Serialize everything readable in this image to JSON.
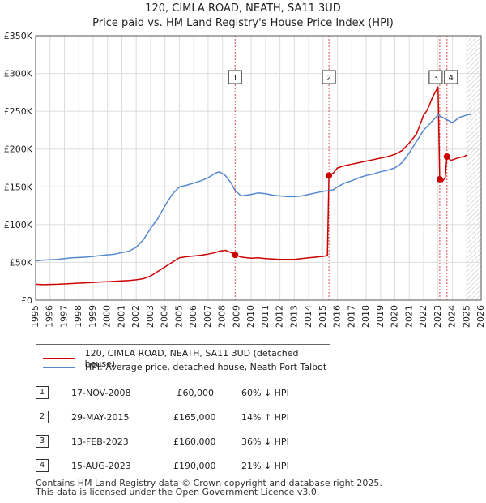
{
  "chart_data": {
    "type": "line",
    "title": "120, CIMLA ROAD, NEATH, SA11 3UD",
    "subtitle": "Price paid vs. HM Land Registry's House Price Index (HPI)",
    "xlabel": "",
    "ylabel": "",
    "xlim": [
      1995,
      2026
    ],
    "ylim": [
      0,
      350000
    ],
    "x_ticks": [
      "1995",
      "1996",
      "1997",
      "1998",
      "1999",
      "2000",
      "2001",
      "2002",
      "2003",
      "2004",
      "2005",
      "2006",
      "2007",
      "2008",
      "2009",
      "2010",
      "2011",
      "2012",
      "2013",
      "2014",
      "2015",
      "2016",
      "2017",
      "2018",
      "2019",
      "2020",
      "2021",
      "2022",
      "2023",
      "2024",
      "2025",
      "2026"
    ],
    "y_ticks": [
      {
        "value": 0,
        "label": "£0"
      },
      {
        "value": 50000,
        "label": "£50K"
      },
      {
        "value": 100000,
        "label": "£100K"
      },
      {
        "value": 150000,
        "label": "£150K"
      },
      {
        "value": 200000,
        "label": "£200K"
      },
      {
        "value": 250000,
        "label": "£250K"
      },
      {
        "value": 300000,
        "label": "£300K"
      },
      {
        "value": 350000,
        "label": "£350K"
      }
    ],
    "grid": true,
    "forecast_start": 2025.0,
    "series": [
      {
        "name": "120, CIMLA ROAD, NEATH, SA11 3UD (detached house)",
        "color": "#cc0000",
        "x": [
          1995.0,
          1995.5,
          1996.0,
          1996.5,
          1997.0,
          1997.5,
          1998.0,
          1998.5,
          1999.0,
          1999.5,
          2000.0,
          2000.5,
          2001.0,
          2001.5,
          2002.0,
          2002.5,
          2003.0,
          2003.5,
          2004.0,
          2004.5,
          2005.0,
          2005.5,
          2006.0,
          2006.5,
          2007.0,
          2007.5,
          2007.8,
          2008.2,
          2008.6,
          2008.88,
          2009.3,
          2010.0,
          2010.5,
          2011.0,
          2011.5,
          2012.0,
          2012.5,
          2013.0,
          2013.5,
          2014.0,
          2014.5,
          2015.0,
          2015.3,
          2015.41,
          2015.7,
          2016.0,
          2016.5,
          2017.0,
          2017.5,
          2018.0,
          2018.5,
          2019.0,
          2019.5,
          2020.0,
          2020.5,
          2021.0,
          2021.5,
          2021.8,
          2022.0,
          2022.2,
          2022.4,
          2022.6,
          2022.8,
          2023.0,
          2023.12,
          2023.3,
          2023.5,
          2023.62,
          2023.9,
          2024.2,
          2024.5,
          2024.8,
          2025.0
        ],
        "y": [
          21000,
          20500,
          20800,
          21000,
          21500,
          22000,
          22500,
          23000,
          23500,
          24000,
          24500,
          25000,
          25500,
          26000,
          27000,
          28500,
          32000,
          38000,
          44000,
          50000,
          56000,
          57500,
          58500,
          59500,
          61000,
          63000,
          65000,
          66000,
          63000,
          60000,
          57000,
          55500,
          56000,
          55000,
          54500,
          54000,
          54000,
          54000,
          55000,
          56000,
          57000,
          58000,
          59000,
          165000,
          168000,
          175000,
          178000,
          180000,
          182000,
          184000,
          186000,
          188000,
          190000,
          193000,
          198000,
          208000,
          220000,
          235000,
          245000,
          250000,
          258000,
          268000,
          275000,
          282000,
          160000,
          157000,
          162000,
          190000,
          185000,
          187000,
          189000,
          190000,
          192000
        ]
      },
      {
        "name": "HPI: Average price, detached house, Neath Port Talbot",
        "color": "#5588cc",
        "x": [
          1995.0,
          1995.5,
          1996.0,
          1996.5,
          1997.0,
          1997.5,
          1998.0,
          1998.5,
          1999.0,
          1999.5,
          2000.0,
          2000.5,
          2001.0,
          2001.5,
          2002.0,
          2002.5,
          2003.0,
          2003.5,
          2004.0,
          2004.5,
          2005.0,
          2005.5,
          2006.0,
          2006.5,
          2007.0,
          2007.5,
          2007.8,
          2008.2,
          2008.6,
          2008.88,
          2009.3,
          2010.0,
          2010.5,
          2011.0,
          2011.5,
          2012.0,
          2012.5,
          2013.0,
          2013.5,
          2014.0,
          2014.5,
          2015.0,
          2015.41,
          2015.7,
          2016.0,
          2016.5,
          2017.0,
          2017.5,
          2018.0,
          2018.5,
          2019.0,
          2019.5,
          2020.0,
          2020.5,
          2021.0,
          2021.5,
          2022.0,
          2022.5,
          2023.0,
          2023.5,
          2024.0,
          2024.5,
          2025.0,
          2025.3
        ],
        "y": [
          52000,
          53000,
          53500,
          54000,
          55000,
          56000,
          56500,
          57000,
          58000,
          59000,
          60000,
          61000,
          63000,
          65000,
          70000,
          80000,
          95000,
          108000,
          125000,
          140000,
          150000,
          152000,
          155000,
          158000,
          162000,
          168000,
          170000,
          165000,
          155000,
          145000,
          138000,
          140000,
          142000,
          141000,
          139000,
          138000,
          137000,
          137000,
          138000,
          140000,
          142000,
          144000,
          145000,
          146000,
          150000,
          155000,
          158000,
          162000,
          165000,
          167000,
          170000,
          172000,
          175000,
          182000,
          195000,
          210000,
          225000,
          235000,
          245000,
          240000,
          235000,
          242000,
          245000,
          246000
        ]
      }
    ],
    "transactions": [
      {
        "n": "1",
        "x": 2008.88,
        "y": 60000
      },
      {
        "n": "2",
        "x": 2015.41,
        "y": 165000
      },
      {
        "n": "3",
        "x": 2023.12,
        "y": 160000
      },
      {
        "n": "4",
        "x": 2023.62,
        "y": 190000
      }
    ]
  },
  "legend": {
    "property": "120, CIMLA ROAD, NEATH, SA11 3UD (detached house)",
    "hpi": "HPI: Average price, detached house, Neath Port Talbot"
  },
  "transactions_table": [
    {
      "n": "1",
      "date": "17-NOV-2008",
      "price": "£60,000",
      "hpi": "60% ↓ HPI"
    },
    {
      "n": "2",
      "date": "29-MAY-2015",
      "price": "£165,000",
      "hpi": "14% ↑ HPI"
    },
    {
      "n": "3",
      "date": "13-FEB-2023",
      "price": "£160,000",
      "hpi": "36% ↓ HPI"
    },
    {
      "n": "4",
      "date": "15-AUG-2023",
      "price": "£190,000",
      "hpi": "21% ↓ HPI"
    }
  ],
  "footer": {
    "line1": "Contains HM Land Registry data © Crown copyright and database right 2025.",
    "line2": "This data is licensed under the Open Government Licence v3.0."
  },
  "colors": {
    "property": "#cc0000",
    "hpi": "#5588cc",
    "grid": "#dddddd",
    "marker_line": "#cc0000"
  }
}
